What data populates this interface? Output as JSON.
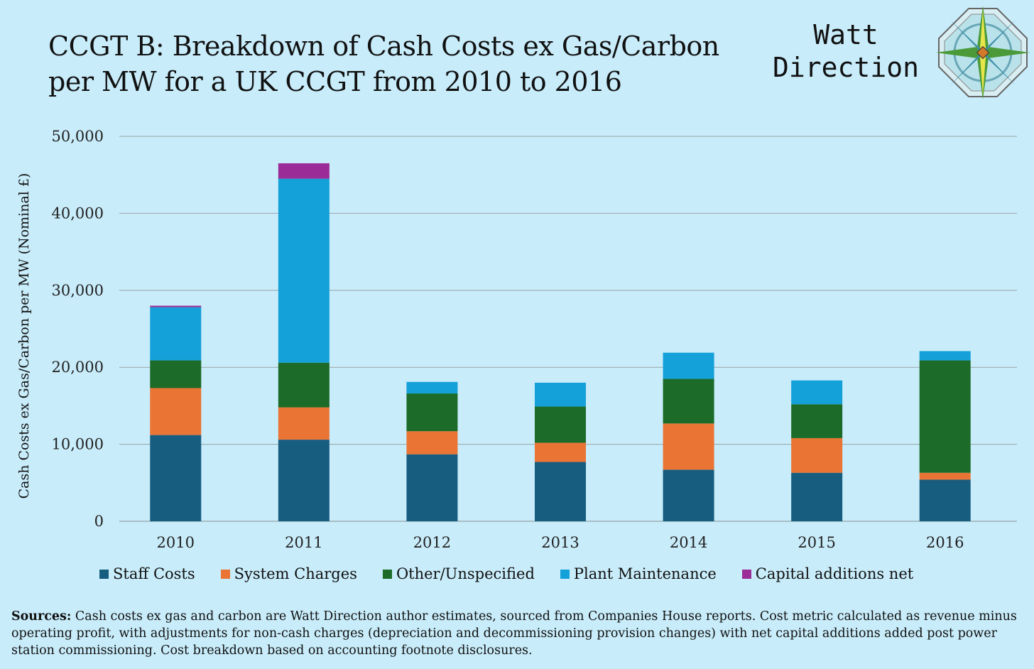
{
  "title": "CCGT B: Breakdown of Cash Costs ex Gas/Carbon per MW for a UK CCGT from 2010 to 2016",
  "brand": {
    "line1": "Watt",
    "line2": "Direction"
  },
  "sources": {
    "label": "Sources:",
    "text": " Cash costs ex gas and carbon are Watt Direction author estimates, sourced from Companies House reports. Cost metric calculated as revenue minus operating profit, with adjustments for non-cash charges (depreciation and decommissioning provision changes) with net capital additions added post power station commissioning. Cost breakdown based on accounting footnote disclosures."
  },
  "chart_data": {
    "type": "bar",
    "stacked": true,
    "title": "CCGT B: Breakdown of Cash Costs ex Gas/Carbon per MW for a UK CCGT from 2010 to 2016",
    "ylabel": "Cash Costs ex Gas/Carbon per MW (Nominal £)",
    "xlabel": "",
    "ylim": [
      0,
      50000
    ],
    "yticks": [
      0,
      10000,
      20000,
      30000,
      40000,
      50000
    ],
    "ytick_labels": [
      "0",
      "10,000",
      "20,000",
      "30,000",
      "40,000",
      "50,000"
    ],
    "grid": true,
    "legend_position": "bottom",
    "categories": [
      "2010",
      "2011",
      "2012",
      "2013",
      "2014",
      "2015",
      "2016"
    ],
    "series": [
      {
        "name": "Staff Costs",
        "color": "#175d80",
        "values": [
          11200,
          10600,
          8700,
          7700,
          6700,
          6300,
          5400
        ]
      },
      {
        "name": "System Charges",
        "color": "#ea7434",
        "values": [
          6100,
          4200,
          3000,
          2500,
          6000,
          4500,
          900
        ]
      },
      {
        "name": "Other/Unspecified",
        "color": "#1c6b28",
        "values": [
          3600,
          5800,
          4900,
          4700,
          5800,
          4400,
          14600
        ]
      },
      {
        "name": "Plant Maintenance",
        "color": "#14a0d8",
        "values": [
          6900,
          23900,
          1500,
          3100,
          3400,
          3100,
          1200
        ]
      },
      {
        "name": "Capital additions net",
        "color": "#9b2b96",
        "values": [
          200,
          2000,
          0,
          0,
          0,
          0,
          0
        ]
      }
    ]
  }
}
